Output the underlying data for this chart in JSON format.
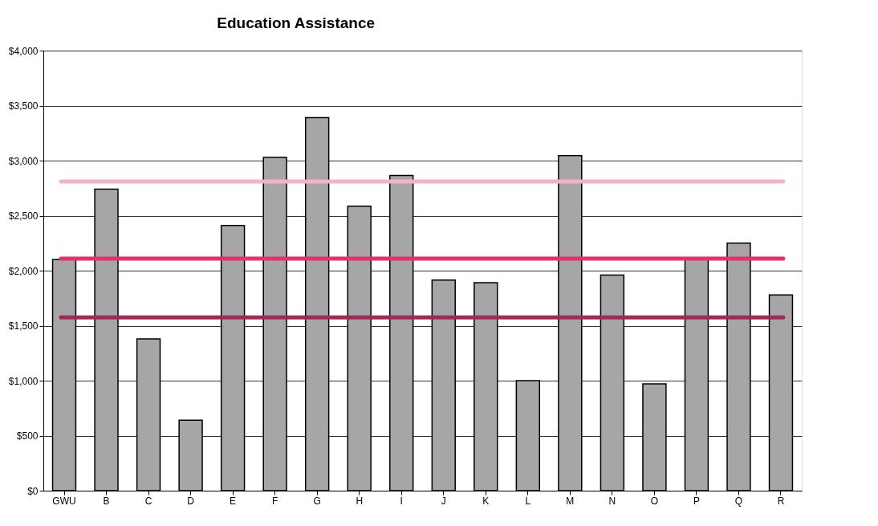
{
  "chart_data": {
    "type": "bar",
    "title": "Education Assistance",
    "categories": [
      "GWU",
      "B",
      "C",
      "D",
      "E",
      "F",
      "G",
      "H",
      "I",
      "J",
      "K",
      "L",
      "M",
      "N",
      "O",
      "P",
      "Q",
      "R"
    ],
    "values": [
      2100,
      2740,
      1380,
      640,
      2410,
      3030,
      3390,
      2585,
      2865,
      1915,
      1890,
      1000,
      3045,
      1960,
      970,
      2100,
      2250,
      1780
    ],
    "color": "#a6a6a6",
    "ylim": [
      0,
      4000
    ],
    "yticks": [
      {
        "value": 0,
        "label": "$0"
      },
      {
        "value": 500,
        "label": "$500"
      },
      {
        "value": 1000,
        "label": "$1,000"
      },
      {
        "value": 1500,
        "label": "$1,500"
      },
      {
        "value": 2000,
        "label": "$2,000"
      },
      {
        "value": 2500,
        "label": "$2,500"
      },
      {
        "value": 3000,
        "label": "$3,000"
      },
      {
        "value": 3500,
        "label": "$3,500"
      },
      {
        "value": 4000,
        "label": "$4,000"
      }
    ],
    "grid": "y",
    "ref_lines": [
      {
        "axis": "y",
        "value": 2810,
        "color": "#f6b3c0"
      },
      {
        "axis": "y",
        "value": 2110,
        "color": "#e5306a"
      },
      {
        "axis": "y",
        "value": 1575,
        "color": "#a3275a"
      }
    ]
  }
}
